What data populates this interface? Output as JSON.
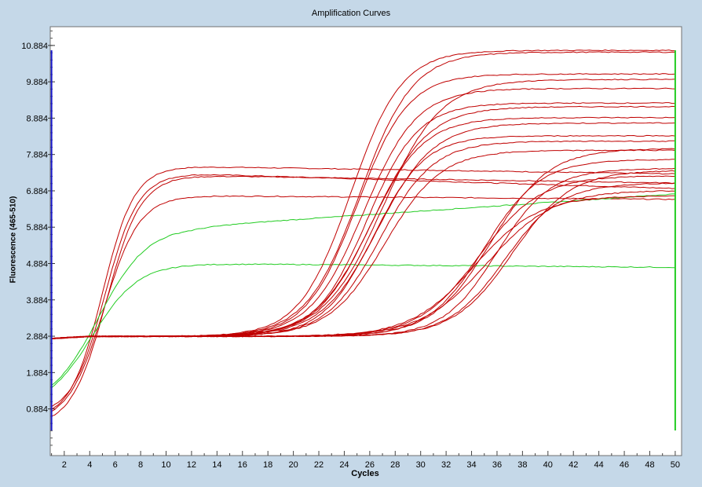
{
  "colors": {
    "sample_curve": "#c00000",
    "control_curve": "#22cc22",
    "start_marker": "#1a1acc",
    "end_marker": "#22cc22",
    "background": "#c5d8e8",
    "plot_background": "#ffffff"
  },
  "chart_data": {
    "type": "line",
    "title": "Amplification Curves",
    "xlabel": "Cycles",
    "ylabel": "Fluorescence (465-510)",
    "xlim": [
      0.9,
      50.5
    ],
    "ylim": [
      -0.4,
      11.4
    ],
    "x_ticks": [
      2,
      4,
      6,
      8,
      10,
      12,
      14,
      16,
      18,
      20,
      22,
      24,
      26,
      28,
      30,
      32,
      34,
      36,
      38,
      40,
      42,
      44,
      46,
      48,
      50
    ],
    "y_ticks": [
      0.884,
      1.884,
      2.884,
      3.884,
      4.884,
      5.884,
      6.884,
      7.884,
      8.884,
      9.884,
      10.884
    ],
    "y_tick_labels": [
      "0.884",
      "1.884",
      "2.884",
      "3.884",
      "4.884",
      "5.884",
      "6.884",
      "7.884",
      "8.884",
      "9.884",
      "10.884"
    ],
    "grid": false,
    "markers": {
      "start_cycle": 1,
      "end_cycle": 50
    },
    "series": [
      {
        "color": "sample",
        "kind": "early",
        "baseline": 0.6,
        "plateau": 7.55,
        "midpoint": 5.0,
        "slope": 1.25,
        "drift": -0.2
      },
      {
        "color": "sample",
        "kind": "early",
        "baseline": 0.7,
        "plateau": 7.35,
        "midpoint": 5.2,
        "slope": 1.3,
        "drift": -0.4
      },
      {
        "color": "sample",
        "kind": "early",
        "baseline": 0.5,
        "plateau": 6.75,
        "midpoint": 5.1,
        "slope": 1.4,
        "drift": -0.1
      },
      {
        "color": "sample",
        "kind": "early",
        "baseline": 0.4,
        "plateau": 7.3,
        "midpoint": 5.3,
        "slope": 1.35,
        "drift": -0.2
      },
      {
        "color": "control",
        "kind": "early",
        "baseline": 0.9,
        "plateau": 4.88,
        "midpoint": 4.2,
        "slope": 1.8,
        "drift": -0.1
      },
      {
        "color": "control",
        "kind": "early",
        "baseline": 0.9,
        "plateau": 5.9,
        "midpoint": 4.7,
        "slope": 1.9,
        "drift": 0.9
      },
      {
        "color": "sample",
        "kind": "late",
        "baseline": 2.88,
        "plateau": 10.75,
        "midpoint": 24.5,
        "slope": 2.0
      },
      {
        "color": "sample",
        "kind": "late",
        "baseline": 2.88,
        "plateau": 10.7,
        "midpoint": 25.2,
        "slope": 2.1
      },
      {
        "color": "sample",
        "kind": "late",
        "baseline": 2.88,
        "plateau": 10.1,
        "midpoint": 25.0,
        "slope": 2.0
      },
      {
        "color": "sample",
        "kind": "late",
        "baseline": 2.88,
        "plateau": 9.7,
        "midpoint": 25.5,
        "slope": 2.1
      },
      {
        "color": "sample",
        "kind": "late",
        "baseline": 2.88,
        "plateau": 9.3,
        "midpoint": 25.8,
        "slope": 2.0
      },
      {
        "color": "sample",
        "kind": "late",
        "baseline": 2.88,
        "plateau": 9.2,
        "midpoint": 26.2,
        "slope": 2.2
      },
      {
        "color": "sample",
        "kind": "late",
        "baseline": 2.88,
        "plateau": 8.9,
        "midpoint": 26.0,
        "slope": 2.1
      },
      {
        "color": "sample",
        "kind": "late",
        "baseline": 2.88,
        "plateau": 8.75,
        "midpoint": 26.6,
        "slope": 2.2
      },
      {
        "color": "sample",
        "kind": "late",
        "baseline": 2.88,
        "plateau": 8.4,
        "midpoint": 26.3,
        "slope": 2.0
      },
      {
        "color": "sample",
        "kind": "late",
        "baseline": 2.88,
        "plateau": 8.25,
        "midpoint": 26.8,
        "slope": 2.1
      },
      {
        "color": "sample",
        "kind": "late",
        "baseline": 2.88,
        "plateau": 9.95,
        "midpoint": 27.0,
        "slope": 2.3
      },
      {
        "color": "sample",
        "kind": "late",
        "baseline": 2.88,
        "plateau": 8.0,
        "midpoint": 27.2,
        "slope": 2.2
      },
      {
        "color": "sample",
        "kind": "late",
        "baseline": 2.88,
        "plateau": 8.05,
        "midpoint": 35.5,
        "slope": 2.3
      },
      {
        "color": "sample",
        "kind": "late",
        "baseline": 2.88,
        "plateau": 7.75,
        "midpoint": 35.0,
        "slope": 2.2
      },
      {
        "color": "sample",
        "kind": "late",
        "baseline": 2.88,
        "plateau": 7.5,
        "midpoint": 36.0,
        "slope": 2.1
      },
      {
        "color": "sample",
        "kind": "late",
        "baseline": 2.88,
        "plateau": 7.3,
        "midpoint": 34.6,
        "slope": 2.4
      },
      {
        "color": "sample",
        "kind": "late",
        "baseline": 2.88,
        "plateau": 7.1,
        "midpoint": 36.6,
        "slope": 2.2
      },
      {
        "color": "sample",
        "kind": "late",
        "baseline": 2.88,
        "plateau": 6.9,
        "midpoint": 35.2,
        "slope": 2.6
      },
      {
        "color": "sample",
        "kind": "late",
        "baseline": 2.88,
        "plateau": 7.45,
        "midpoint": 37.2,
        "slope": 2.3
      },
      {
        "color": "sample",
        "kind": "late",
        "baseline": 2.88,
        "plateau": 6.75,
        "midpoint": 34.2,
        "slope": 2.5
      }
    ]
  }
}
